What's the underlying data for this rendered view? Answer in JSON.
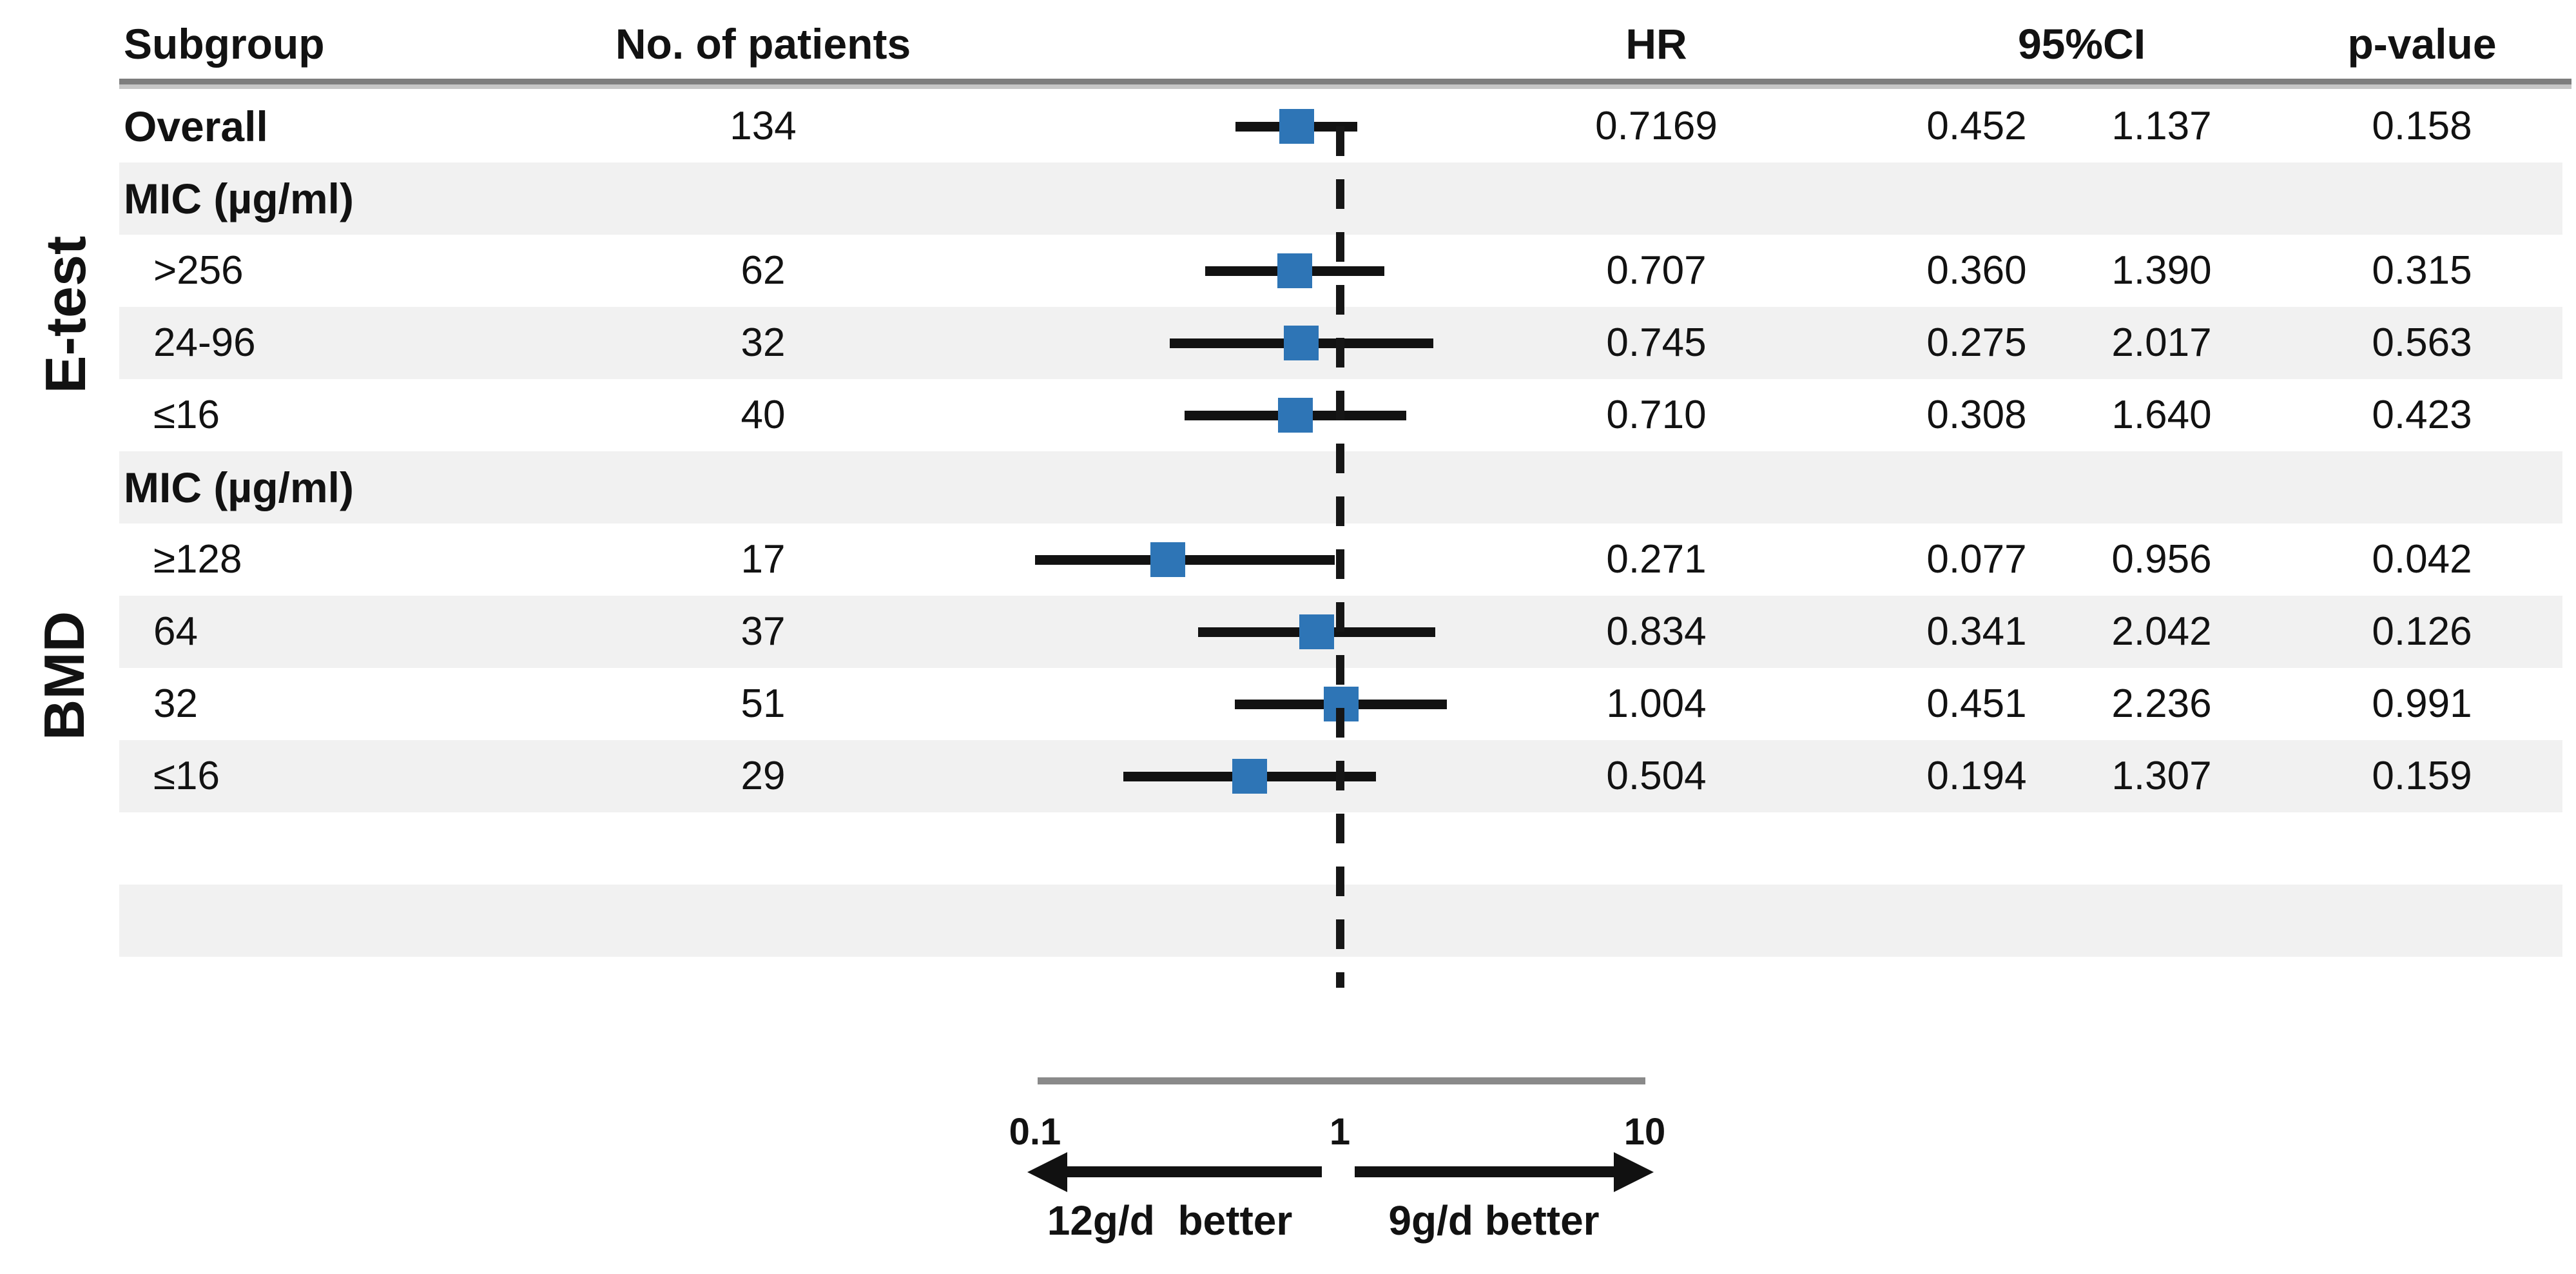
{
  "figure": {
    "kind": "forest-plot",
    "side_labels": [
      {
        "text": "E-test"
      },
      {
        "text": "BMD"
      }
    ]
  },
  "columns": {
    "subgroup": "Subgroup",
    "patients": "No. of patients",
    "hr": "HR",
    "ci": "95%CI",
    "p": "p-value"
  },
  "colors": {
    "stripe": "#f1f1f1",
    "marker_blue": "#2e75b6",
    "ci_black": "#121212",
    "axis_gray": "#8a8a8a",
    "text": "#121212"
  },
  "chart_data": {
    "type": "forest",
    "x_axis": {
      "scale": "log10",
      "ticks": [
        0.1,
        1,
        10
      ],
      "tick_labels": [
        "0.1",
        "1",
        "10"
      ],
      "range": [
        0.1,
        10
      ],
      "reference_line": 1,
      "left_arrow_label": "12g/d  better",
      "right_arrow_label": "9g/d better"
    },
    "groups": [
      {
        "name": "E-test",
        "row_indices": [
          1,
          2,
          3,
          4
        ]
      },
      {
        "name": "BMD",
        "row_indices": [
          5,
          6,
          7,
          8,
          9
        ]
      }
    ],
    "rows": [
      {
        "kind": "data",
        "label": "Overall",
        "bold": true,
        "indent": false,
        "patients": "134",
        "hr": 0.7169,
        "ci_low": 0.452,
        "ci_high": 1.137,
        "hr_text": "0.7169",
        "ci_low_text": "0.452",
        "ci_high_text": "1.137",
        "p_text": "0.158",
        "stripe": false
      },
      {
        "kind": "section",
        "label": "MIC (µg/ml)",
        "bold": true,
        "indent": false,
        "stripe": true
      },
      {
        "kind": "data",
        "label": ">256",
        "bold": false,
        "indent": true,
        "patients": "62",
        "hr": 0.707,
        "ci_low": 0.36,
        "ci_high": 1.39,
        "hr_text": "0.707",
        "ci_low_text": "0.360",
        "ci_high_text": "1.390",
        "p_text": "0.315",
        "stripe": false
      },
      {
        "kind": "data",
        "label": "24-96",
        "bold": false,
        "indent": true,
        "patients": "32",
        "hr": 0.745,
        "ci_low": 0.275,
        "ci_high": 2.017,
        "hr_text": "0.745",
        "ci_low_text": "0.275",
        "ci_high_text": "2.017",
        "p_text": "0.563",
        "stripe": true
      },
      {
        "kind": "data",
        "label": "≤16",
        "bold": false,
        "indent": true,
        "patients": "40",
        "hr": 0.71,
        "ci_low": 0.308,
        "ci_high": 1.64,
        "hr_text": "0.710",
        "ci_low_text": "0.308",
        "ci_high_text": "1.640",
        "p_text": "0.423",
        "stripe": false
      },
      {
        "kind": "section",
        "label": "MIC (µg/ml)",
        "bold": true,
        "indent": false,
        "stripe": true
      },
      {
        "kind": "data",
        "label": "≥128",
        "bold": false,
        "indent": true,
        "patients": "17",
        "hr": 0.271,
        "ci_low": 0.077,
        "ci_high": 0.956,
        "hr_text": "0.271",
        "ci_low_text": "0.077",
        "ci_high_text": "0.956",
        "p_text": "0.042",
        "stripe": false
      },
      {
        "kind": "data",
        "label": "64",
        "bold": false,
        "indent": true,
        "patients": "37",
        "hr": 0.834,
        "ci_low": 0.341,
        "ci_high": 2.042,
        "hr_text": "0.834",
        "ci_low_text": "0.341",
        "ci_high_text": "2.042",
        "p_text": "0.126",
        "stripe": true
      },
      {
        "kind": "data",
        "label": "32",
        "bold": false,
        "indent": true,
        "patients": "51",
        "hr": 1.004,
        "ci_low": 0.451,
        "ci_high": 2.236,
        "hr_text": "1.004",
        "ci_low_text": "0.451",
        "ci_high_text": "2.236",
        "p_text": "0.991",
        "stripe": false
      },
      {
        "kind": "data",
        "label": "≤16",
        "bold": false,
        "indent": true,
        "patients": "29",
        "hr": 0.504,
        "ci_low": 0.194,
        "ci_high": 1.307,
        "hr_text": "0.504",
        "ci_low_text": "0.194",
        "ci_high_text": "1.307",
        "p_text": "0.159",
        "stripe": true
      },
      {
        "kind": "empty",
        "stripe": false
      },
      {
        "kind": "empty",
        "stripe": true
      }
    ]
  }
}
